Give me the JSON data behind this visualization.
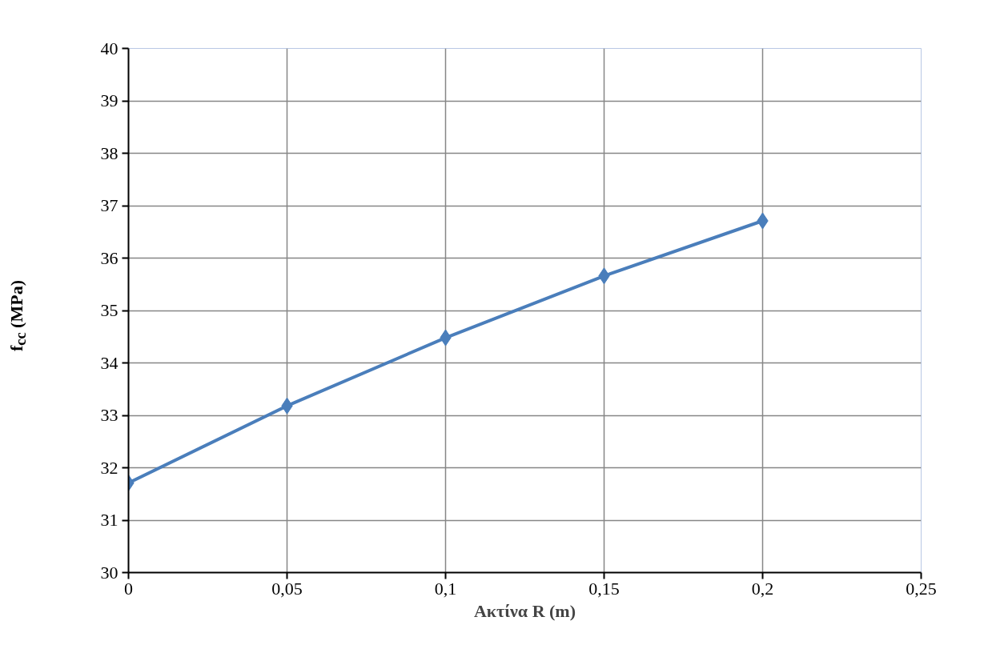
{
  "chart_data": {
    "type": "line",
    "xlabel": "Ακτίνα R (m)",
    "ylabel": "f$_{cc}$ (MPa)",
    "x": [
      0,
      0.05,
      0.1,
      0.15,
      0.2
    ],
    "series": [
      {
        "color": "#4a7ebb",
        "values": [
          31.71,
          33.18,
          34.48,
          35.66,
          36.71
        ]
      }
    ],
    "xlim": [
      0,
      0.25
    ],
    "xticks": [
      0,
      {
        "value": 0.05,
        "label": "0,05"
      },
      {
        "value": 0.1,
        "label": "0,1"
      },
      {
        "value": 0.15,
        "label": "0,15"
      },
      {
        "value": 0.2,
        "label": "0,2"
      },
      {
        "value": 0.25,
        "label": "0,25"
      }
    ],
    "ylim": [
      30,
      40
    ],
    "yticks": [
      30,
      31,
      32,
      33,
      34,
      35,
      36,
      37,
      38,
      39,
      40
    ],
    "grid": true,
    "marker": "diamond",
    "line_style": "solid"
  }
}
